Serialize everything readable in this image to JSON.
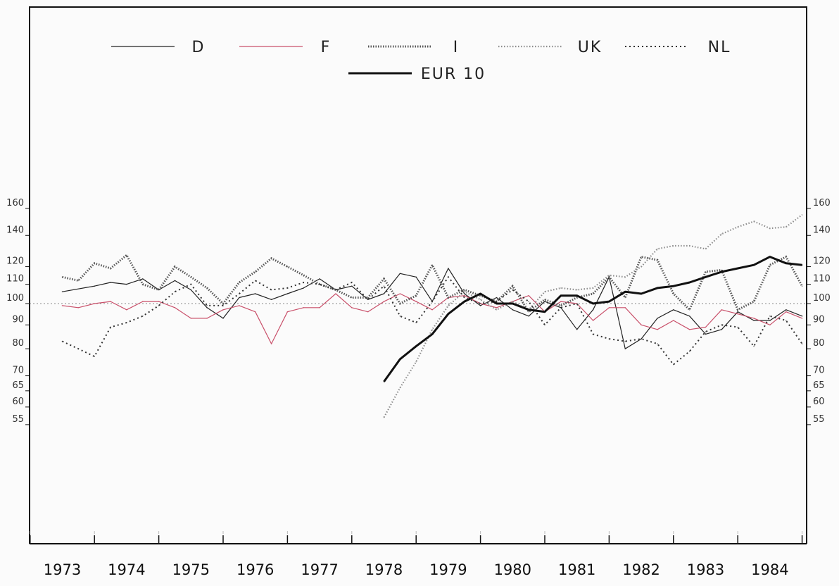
{
  "chart_data": {
    "type": "line",
    "title": "",
    "xlabel": "",
    "ylabel": "",
    "y_scale": "log",
    "ylim": [
      55,
      170
    ],
    "xlim": [
      1972.88,
      1985.0
    ],
    "y_ticks": [
      55,
      60,
      65,
      70,
      80,
      90,
      100,
      110,
      120,
      140,
      160
    ],
    "x_tick_labels": [
      "1973",
      "1974",
      "1975",
      "1976",
      "1977",
      "1978",
      "1979",
      "1980",
      "1981",
      "1982",
      "1983",
      "1984"
    ],
    "reference_line": 100,
    "grid": false,
    "legend_position": "top",
    "series": [
      {
        "name": "D",
        "color": "#222222",
        "style": "thin",
        "x": [
          1973.0,
          1973.5,
          1973.75,
          1974.0,
          1974.25,
          1974.5,
          1974.75,
          1975.0,
          1975.25,
          1975.5,
          1975.75,
          1976.0,
          1976.25,
          1976.5,
          1976.75,
          1977.0,
          1977.25,
          1977.5,
          1977.75,
          1978.0,
          1978.25,
          1978.5,
          1978.75,
          1979.0,
          1979.25,
          1979.5,
          1979.75,
          1980.0,
          1980.25,
          1980.5,
          1980.75,
          1981.0,
          1981.25,
          1981.5,
          1981.75,
          1982.0,
          1982.25,
          1982.5,
          1982.75,
          1983.0,
          1983.25,
          1983.5,
          1983.75,
          1984.0,
          1984.25,
          1984.5,
          1984.75,
          1985.0
        ],
        "values": [
          106,
          109,
          111,
          110,
          113,
          107,
          112,
          107,
          98,
          93,
          103,
          105,
          102,
          105,
          108,
          113,
          107,
          109,
          102,
          105,
          116,
          114,
          101,
          119,
          105,
          99,
          103,
          97,
          94,
          101,
          98,
          88,
          97,
          114,
          80,
          84,
          93,
          97,
          94,
          86,
          88,
          96,
          92,
          92,
          97,
          94,
          null,
          null
        ]
      },
      {
        "name": "F",
        "color": "#c9506a",
        "style": "thin",
        "x": [
          1973.0,
          1973.25,
          1973.5,
          1973.75,
          1974.0,
          1974.25,
          1974.5,
          1974.75,
          1975.0,
          1975.25,
          1975.5,
          1975.75,
          1976.0,
          1976.25,
          1976.5,
          1976.75,
          1977.0,
          1977.25,
          1977.5,
          1977.75,
          1978.0,
          1978.25,
          1978.5,
          1978.75,
          1979.0,
          1979.25,
          1979.5,
          1979.75,
          1980.0,
          1980.25,
          1980.5,
          1980.75,
          1981.0,
          1981.25,
          1981.5,
          1981.75,
          1982.0,
          1982.25,
          1982.5,
          1982.75,
          1983.0,
          1983.25,
          1983.5,
          1983.75,
          1984.0,
          1984.25,
          1984.5
        ],
        "values": [
          99,
          98,
          100,
          101,
          97,
          101,
          101,
          98,
          93,
          93,
          97,
          99,
          96,
          82,
          96,
          98,
          98,
          105,
          98,
          96,
          101,
          105,
          101,
          97,
          103,
          104,
          100,
          98,
          101,
          104,
          96,
          101,
          100,
          92,
          98,
          98,
          90,
          88,
          92,
          88,
          89,
          97,
          95,
          93,
          90,
          96,
          93
        ]
      },
      {
        "name": "I",
        "color": "#555555",
        "style": "dotted-heavy",
        "x": [
          1973.0,
          1973.25,
          1973.5,
          1973.75,
          1974.0,
          1974.25,
          1974.5,
          1974.75,
          1975.0,
          1975.25,
          1975.5,
          1975.75,
          1976.0,
          1976.25,
          1976.5,
          1976.75,
          1977.0,
          1977.25,
          1977.5,
          1977.75,
          1978.0,
          1978.25,
          1978.5,
          1978.75,
          1979.0,
          1979.25,
          1979.5,
          1979.75,
          1980.0,
          1980.25,
          1980.5,
          1980.75,
          1981.0,
          1981.25,
          1981.5,
          1981.75,
          1982.0,
          1982.25,
          1982.5,
          1982.75,
          1983.0,
          1983.25,
          1983.5,
          1983.75,
          1984.0,
          1984.25,
          1984.5
        ],
        "values": [
          114,
          112,
          122,
          119,
          127,
          110,
          107,
          120,
          114,
          108,
          100,
          111,
          117,
          125,
          120,
          115,
          110,
          107,
          103,
          103,
          113,
          100,
          104,
          121,
          103,
          107,
          104,
          101,
          109,
          96,
          102,
          99,
          103,
          105,
          114,
          103,
          126,
          124,
          105,
          97,
          117,
          118,
          97,
          101,
          121,
          126,
          109
        ]
      },
      {
        "name": "UK",
        "color": "#8c8c8c",
        "style": "dotted-light",
        "x": [
          1978.0,
          1978.25,
          1978.5,
          1978.75,
          1979.0,
          1979.25,
          1979.5,
          1979.75,
          1980.0,
          1980.25,
          1980.5,
          1980.75,
          1981.0,
          1981.25,
          1981.5,
          1981.75,
          1982.0,
          1982.25,
          1982.5,
          1982.75,
          1983.0,
          1983.25,
          1983.5,
          1983.75,
          1984.0,
          1984.25,
          1984.5
        ],
        "values": [
          57,
          66,
          75,
          88,
          99,
          106,
          102,
          97,
          101,
          97,
          106,
          108,
          107,
          108,
          115,
          114,
          120,
          131,
          133,
          133,
          131,
          141,
          146,
          150,
          145,
          146,
          155
        ]
      },
      {
        "name": "NL",
        "color": "#333333",
        "style": "dash-cross",
        "x": [
          1973.0,
          1973.25,
          1973.5,
          1973.75,
          1974.0,
          1974.25,
          1974.5,
          1974.75,
          1975.0,
          1975.25,
          1975.5,
          1975.75,
          1976.0,
          1976.25,
          1976.5,
          1976.75,
          1977.0,
          1977.25,
          1977.5,
          1977.75,
          1978.0,
          1978.25,
          1978.5,
          1978.75,
          1979.0,
          1979.25,
          1979.5,
          1979.75,
          1980.0,
          1980.25,
          1980.5,
          1980.75,
          1981.0,
          1981.25,
          1981.5,
          1981.75,
          1982.0,
          1982.25,
          1982.5,
          1982.75,
          1983.0,
          1983.25,
          1983.5,
          1983.75,
          1984.0,
          1984.25,
          1984.5
        ],
        "values": [
          83,
          80,
          77,
          89,
          91,
          94,
          99,
          106,
          110,
          99,
          99,
          105,
          112,
          107,
          108,
          111,
          110,
          107,
          111,
          102,
          109,
          94,
          91,
          101,
          114,
          103,
          100,
          101,
          107,
          101,
          90,
          98,
          100,
          86,
          84,
          83,
          84,
          82,
          74,
          79,
          87,
          90,
          89,
          81,
          94,
          92,
          82
        ]
      },
      {
        "name": "EUR 10",
        "color": "#111111",
        "style": "thick",
        "x": [
          1978.0,
          1978.25,
          1978.5,
          1978.75,
          1979.0,
          1979.25,
          1979.5,
          1979.75,
          1980.0,
          1980.25,
          1980.5,
          1980.75,
          1981.0,
          1981.25,
          1981.5,
          1981.75,
          1982.0,
          1982.25,
          1982.5,
          1982.75,
          1983.0,
          1983.25,
          1983.5,
          1983.75,
          1984.0,
          1984.25,
          1984.5
        ],
        "values": [
          68,
          76,
          81,
          86,
          95,
          101,
          105,
          100,
          100,
          97,
          96,
          104,
          104,
          100,
          101,
          106,
          105,
          108,
          109,
          111,
          114,
          117,
          119,
          121,
          126,
          122,
          121
        ]
      }
    ]
  }
}
